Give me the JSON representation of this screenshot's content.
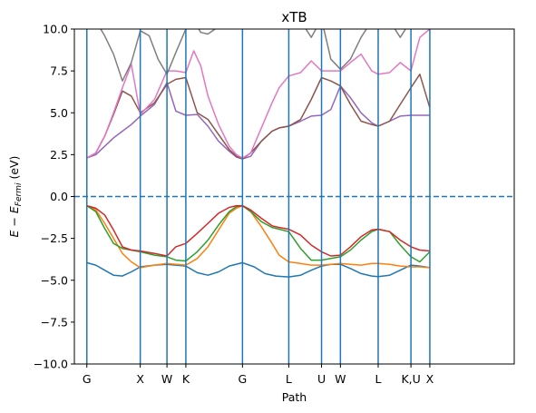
{
  "chart_data": {
    "type": "line",
    "title": "xTB",
    "xlabel": "Path",
    "ylabel_main": "E − E",
    "ylabel_sub": "Fermi",
    "ylabel_unit": " (eV)",
    "ylim": [
      -10,
      10
    ],
    "xlim": [
      -0.35,
      12.0
    ],
    "yticks": [
      -10.0,
      -7.5,
      -5.0,
      -2.5,
      0.0,
      2.5,
      5.0,
      7.5,
      10.0
    ],
    "ytick_labels": [
      "−10.0",
      "−7.5",
      "−5.0",
      "−2.5",
      "0.0",
      "2.5",
      "5.0",
      "7.5",
      "10.0"
    ],
    "xticks": [
      {
        "label": "G",
        "x": 0.0
      },
      {
        "label": "X",
        "x": 1.5
      },
      {
        "label": "W",
        "x": 2.25
      },
      {
        "label": "K",
        "x": 2.78
      },
      {
        "label": "G",
        "x": 4.37
      },
      {
        "label": "L",
        "x": 5.67
      },
      {
        "label": "U",
        "x": 6.59
      },
      {
        "label": "W",
        "x": 7.12
      },
      {
        "label": "L",
        "x": 8.18
      },
      {
        "label": "K,U",
        "x": 9.1
      },
      {
        "label": "X",
        "x": 9.63
      }
    ],
    "fermi_level": 0.0,
    "grid": false,
    "colors": {
      "vline": "#1f77b4",
      "fermi": "#1f77b4",
      "axis": "#000000"
    },
    "series": [
      {
        "color": "#1f77b4",
        "x": [
          0.0,
          0.25,
          0.5,
          0.75,
          1.0,
          1.25,
          1.5,
          1.9,
          2.25,
          2.5,
          2.78,
          3.1,
          3.4,
          3.7,
          4.0,
          4.37,
          4.7,
          5.0,
          5.3,
          5.67,
          6.0,
          6.3,
          6.59,
          6.85,
          7.12,
          7.4,
          7.7,
          8.0,
          8.18,
          8.5,
          8.8,
          9.1,
          9.35,
          9.63
        ],
        "y": [
          -3.95,
          -4.1,
          -4.4,
          -4.7,
          -4.75,
          -4.5,
          -4.2,
          -4.1,
          -4.05,
          -4.1,
          -4.15,
          -4.55,
          -4.7,
          -4.5,
          -4.15,
          -3.95,
          -4.2,
          -4.6,
          -4.75,
          -4.8,
          -4.7,
          -4.4,
          -4.15,
          -4.05,
          -4.05,
          -4.3,
          -4.6,
          -4.75,
          -4.78,
          -4.7,
          -4.4,
          -4.1,
          -4.15,
          -4.25
        ]
      },
      {
        "color": "#ff7f0e",
        "x": [
          0.0,
          0.25,
          0.5,
          0.75,
          1.0,
          1.25,
          1.5,
          1.9,
          2.25,
          2.5,
          2.78,
          3.1,
          3.4,
          3.7,
          4.0,
          4.2,
          4.37,
          4.6,
          4.9,
          5.2,
          5.4,
          5.67,
          6.0,
          6.3,
          6.59,
          6.85,
          7.12,
          7.4,
          7.7,
          8.0,
          8.18,
          8.5,
          8.8,
          9.1,
          9.35,
          9.63
        ],
        "y": [
          -0.55,
          -0.8,
          -1.6,
          -2.5,
          -3.4,
          -3.9,
          -4.25,
          -4.1,
          -4.0,
          -4.05,
          -4.1,
          -3.7,
          -3.0,
          -2.0,
          -1.0,
          -0.7,
          -0.55,
          -0.9,
          -1.8,
          -2.8,
          -3.5,
          -3.9,
          -4.0,
          -4.1,
          -4.1,
          -4.05,
          -4.0,
          -4.05,
          -4.1,
          -4.0,
          -4.0,
          -4.05,
          -4.15,
          -4.2,
          -4.2,
          -4.25
        ]
      },
      {
        "color": "#2ca02c",
        "x": [
          0.0,
          0.25,
          0.5,
          0.75,
          1.0,
          1.25,
          1.5,
          1.9,
          2.25,
          2.5,
          2.78,
          3.1,
          3.4,
          3.7,
          4.0,
          4.2,
          4.37,
          4.6,
          4.9,
          5.2,
          5.4,
          5.67,
          6.0,
          6.3,
          6.59,
          6.85,
          7.12,
          7.4,
          7.7,
          8.0,
          8.18,
          8.5,
          8.8,
          9.1,
          9.35,
          9.63
        ],
        "y": [
          -0.55,
          -0.9,
          -1.9,
          -2.8,
          -3.1,
          -3.2,
          -3.3,
          -3.5,
          -3.6,
          -3.8,
          -3.85,
          -3.3,
          -2.6,
          -1.7,
          -0.9,
          -0.6,
          -0.55,
          -0.9,
          -1.5,
          -1.85,
          -1.95,
          -2.1,
          -3.1,
          -3.8,
          -3.8,
          -3.7,
          -3.6,
          -3.2,
          -2.6,
          -2.1,
          -1.95,
          -2.1,
          -2.9,
          -3.6,
          -3.9,
          -3.3
        ]
      },
      {
        "color": "#d62728",
        "x": [
          0.0,
          0.25,
          0.5,
          0.75,
          1.0,
          1.25,
          1.5,
          1.9,
          2.25,
          2.5,
          2.78,
          3.1,
          3.4,
          3.7,
          4.0,
          4.2,
          4.37,
          4.6,
          4.9,
          5.2,
          5.4,
          5.67,
          6.0,
          6.3,
          6.59,
          6.85,
          7.12,
          7.4,
          7.7,
          8.0,
          8.18,
          8.5,
          8.8,
          9.1,
          9.35,
          9.63
        ],
        "y": [
          -0.55,
          -0.7,
          -1.1,
          -2.0,
          -3.0,
          -3.2,
          -3.25,
          -3.4,
          -3.55,
          -3.0,
          -2.8,
          -2.2,
          -1.6,
          -1.0,
          -0.65,
          -0.55,
          -0.55,
          -0.8,
          -1.3,
          -1.75,
          -1.85,
          -1.95,
          -2.3,
          -2.9,
          -3.3,
          -3.55,
          -3.5,
          -3.0,
          -2.4,
          -2.0,
          -1.95,
          -2.1,
          -2.6,
          -3.0,
          -3.2,
          -3.25
        ]
      },
      {
        "color": "#9467bd",
        "x": [
          0.0,
          0.25,
          0.5,
          0.75,
          1.0,
          1.25,
          1.5,
          1.9,
          2.25,
          2.5,
          2.78,
          3.1,
          3.4,
          3.7,
          4.0,
          4.2,
          4.37,
          4.6,
          4.9,
          5.2,
          5.4,
          5.67,
          6.0,
          6.3,
          6.59,
          6.85,
          7.12,
          7.4,
          7.7,
          8.0,
          8.18,
          8.5,
          8.8,
          9.1,
          9.35,
          9.63
        ],
        "y": [
          2.3,
          2.5,
          3.0,
          3.5,
          3.9,
          4.3,
          4.8,
          5.5,
          6.8,
          5.1,
          4.85,
          4.9,
          4.2,
          3.3,
          2.7,
          2.35,
          2.25,
          2.4,
          3.3,
          3.9,
          4.1,
          4.2,
          4.5,
          4.8,
          4.85,
          5.2,
          6.6,
          5.9,
          5.0,
          4.4,
          4.2,
          4.5,
          4.8,
          4.85,
          4.85,
          4.85
        ]
      },
      {
        "color": "#8c564b",
        "x": [
          0.0,
          0.25,
          0.5,
          0.75,
          1.0,
          1.25,
          1.5,
          1.9,
          2.25,
          2.5,
          2.78,
          3.1,
          3.4,
          3.7,
          4.0,
          4.2,
          4.37,
          4.6,
          4.9,
          5.2,
          5.4,
          5.67,
          6.0,
          6.3,
          6.59,
          6.85,
          7.12,
          7.4,
          7.7,
          8.0,
          8.18,
          8.5,
          8.8,
          9.1,
          9.35,
          9.63
        ],
        "y": [
          2.3,
          2.6,
          3.6,
          4.9,
          6.3,
          6.0,
          5.0,
          5.6,
          6.7,
          7.0,
          7.1,
          5.0,
          4.6,
          3.7,
          2.8,
          2.4,
          2.25,
          2.6,
          3.3,
          3.9,
          4.1,
          4.2,
          4.6,
          5.8,
          7.1,
          6.9,
          6.6,
          5.5,
          4.5,
          4.3,
          4.2,
          4.5,
          5.5,
          6.5,
          7.3,
          5.3
        ]
      },
      {
        "color": "#e377c2",
        "x": [
          0.0,
          0.25,
          0.5,
          0.75,
          1.0,
          1.25,
          1.5,
          1.9,
          2.25,
          2.5,
          2.78,
          3.0,
          3.2,
          3.4,
          3.7,
          4.0,
          4.2,
          4.37,
          4.6,
          4.9,
          5.2,
          5.4,
          5.67,
          6.0,
          6.3,
          6.59,
          6.85,
          7.12,
          7.4,
          7.7,
          8.0,
          8.18,
          8.5,
          8.8,
          9.1,
          9.35,
          9.63
        ],
        "y": [
          2.3,
          2.6,
          3.6,
          5.0,
          6.5,
          7.9,
          4.9,
          5.8,
          7.5,
          7.5,
          7.4,
          8.7,
          7.8,
          6.0,
          4.3,
          3.0,
          2.5,
          2.3,
          2.6,
          4.1,
          5.6,
          6.5,
          7.2,
          7.4,
          8.1,
          7.5,
          7.5,
          7.5,
          8.0,
          8.5,
          7.5,
          7.3,
          7.4,
          8.0,
          7.5,
          9.5,
          10.0
        ]
      },
      {
        "color": "#7f7f7f",
        "x": [
          0.0,
          0.25,
          0.5,
          0.75,
          1.0,
          1.25,
          1.5,
          1.75,
          2.0,
          2.25,
          2.5,
          2.78,
          3.0,
          3.2,
          3.4,
          3.6,
          4.0,
          4.37,
          5.67,
          6.0,
          6.3,
          6.59,
          6.85,
          7.12,
          7.4,
          7.7,
          8.0,
          8.18,
          8.5,
          8.8,
          9.1,
          9.35,
          9.63
        ],
        "y": [
          10.5,
          10.5,
          9.6,
          8.5,
          6.9,
          8.0,
          9.9,
          9.6,
          8.2,
          7.3,
          8.6,
          10.0,
          10.5,
          9.8,
          9.7,
          10.0,
          10.5,
          10.5,
          10.5,
          10.5,
          9.5,
          10.6,
          8.2,
          7.6,
          8.2,
          9.5,
          10.5,
          10.5,
          10.5,
          9.5,
          10.5,
          10.2,
          10.0
        ]
      }
    ]
  }
}
